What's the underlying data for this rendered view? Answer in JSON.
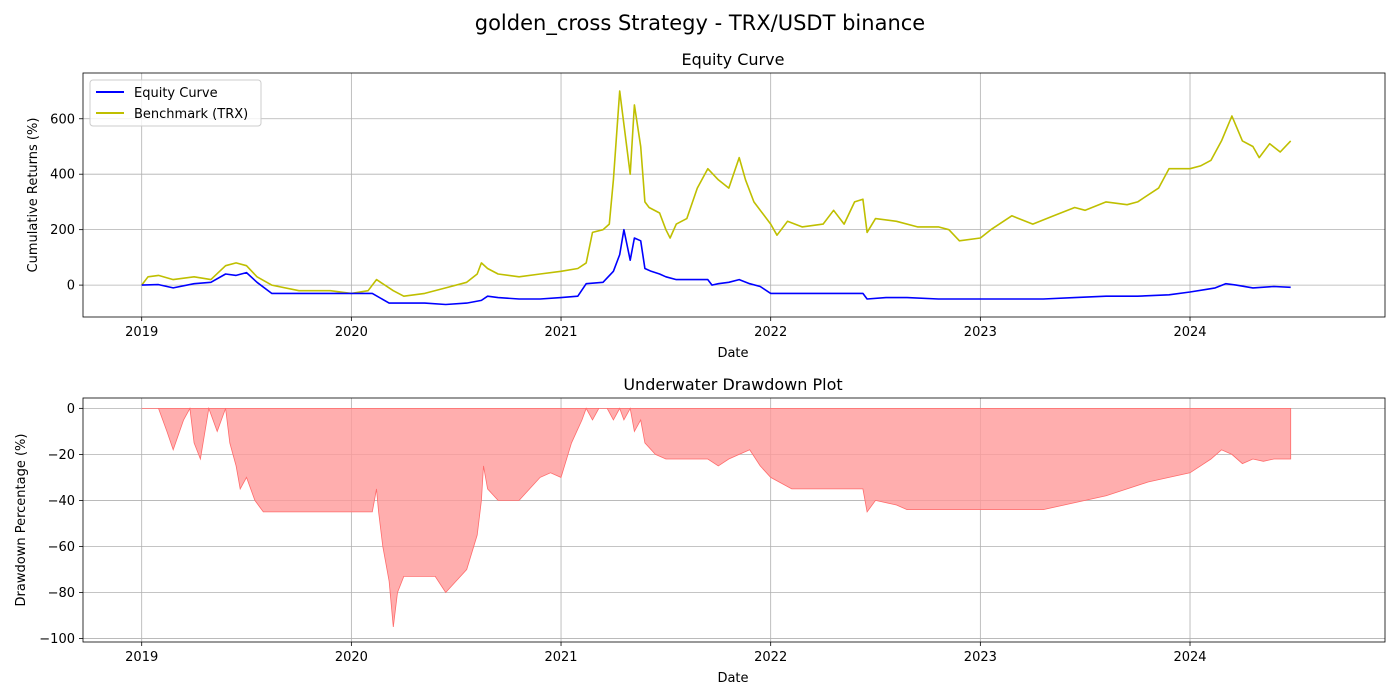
{
  "figure": {
    "title": "golden_cross Strategy - TRX/USDT binance"
  },
  "colors": {
    "equity": "#0000ff",
    "benchmark": "#bfbf00",
    "drawdown_fill": "#ff9a9a",
    "drawdown_line": "#ff6b6b",
    "grid": "#b0b0b0"
  },
  "chart_data": [
    {
      "type": "line",
      "title": "Equity Curve",
      "xlabel": "Date",
      "ylabel": "Cumulative Returns (%)",
      "x_ticks": [
        "2019",
        "2020",
        "2021",
        "2022",
        "2023",
        "2024"
      ],
      "y_ticks": [
        0,
        200,
        400,
        600
      ],
      "xlim": [
        2018.72,
        2024.93
      ],
      "ylim": [
        -115,
        765
      ],
      "grid": true,
      "legend_position": "upper left",
      "series": [
        {
          "name": "Equity Curve",
          "x": [
            2019.0,
            2019.08,
            2019.15,
            2019.25,
            2019.33,
            2019.4,
            2019.45,
            2019.5,
            2019.55,
            2019.62,
            2019.75,
            2019.9,
            2020.0,
            2020.1,
            2020.18,
            2020.25,
            2020.35,
            2020.45,
            2020.55,
            2020.62,
            2020.65,
            2020.7,
            2020.8,
            2020.9,
            2021.0,
            2021.08,
            2021.12,
            2021.2,
            2021.25,
            2021.28,
            2021.3,
            2021.33,
            2021.35,
            2021.38,
            2021.4,
            2021.43,
            2021.47,
            2021.5,
            2021.55,
            2021.62,
            2021.7,
            2021.72,
            2021.75,
            2021.8,
            2021.85,
            2021.9,
            2021.95,
            2022.0,
            2022.1,
            2022.3,
            2022.44,
            2022.46,
            2022.55,
            2022.65,
            2022.8,
            2023.0,
            2023.15,
            2023.3,
            2023.45,
            2023.6,
            2023.75,
            2023.9,
            2024.0,
            2024.08,
            2024.12,
            2024.17,
            2024.22,
            2024.3,
            2024.4,
            2024.48
          ],
          "y": [
            0,
            2,
            -10,
            5,
            10,
            40,
            35,
            45,
            10,
            -30,
            -30,
            -30,
            -30,
            -30,
            -65,
            -65,
            -65,
            -70,
            -65,
            -55,
            -40,
            -45,
            -50,
            -50,
            -45,
            -40,
            5,
            10,
            50,
            110,
            200,
            90,
            170,
            160,
            60,
            50,
            40,
            30,
            20,
            20,
            20,
            0,
            5,
            10,
            20,
            5,
            -5,
            -30,
            -30,
            -30,
            -30,
            -50,
            -45,
            -45,
            -50,
            -50,
            -50,
            -50,
            -45,
            -40,
            -40,
            -35,
            -25,
            -15,
            -10,
            5,
            0,
            -10,
            -5,
            -8
          ]
        },
        {
          "name": "Benchmark (TRX)",
          "x": [
            2019.0,
            2019.03,
            2019.08,
            2019.15,
            2019.25,
            2019.33,
            2019.4,
            2019.45,
            2019.5,
            2019.55,
            2019.62,
            2019.75,
            2019.9,
            2020.0,
            2020.08,
            2020.12,
            2020.2,
            2020.25,
            2020.35,
            2020.45,
            2020.55,
            2020.6,
            2020.62,
            2020.65,
            2020.7,
            2020.8,
            2020.9,
            2021.0,
            2021.08,
            2021.12,
            2021.15,
            2021.2,
            2021.23,
            2021.25,
            2021.28,
            2021.3,
            2021.33,
            2021.35,
            2021.38,
            2021.4,
            2021.42,
            2021.47,
            2021.5,
            2021.52,
            2021.55,
            2021.6,
            2021.65,
            2021.7,
            2021.75,
            2021.8,
            2021.85,
            2021.88,
            2021.92,
            2022.0,
            2022.03,
            2022.08,
            2022.15,
            2022.25,
            2022.3,
            2022.35,
            2022.4,
            2022.44,
            2022.46,
            2022.5,
            2022.6,
            2022.7,
            2022.8,
            2022.85,
            2022.9,
            2023.0,
            2023.05,
            2023.15,
            2023.25,
            2023.35,
            2023.45,
            2023.5,
            2023.6,
            2023.7,
            2023.75,
            2023.85,
            2023.9,
            2024.0,
            2024.05,
            2024.1,
            2024.15,
            2024.2,
            2024.25,
            2024.3,
            2024.33,
            2024.38,
            2024.43,
            2024.48
          ],
          "y": [
            0,
            30,
            35,
            20,
            30,
            20,
            70,
            80,
            70,
            30,
            0,
            -20,
            -20,
            -30,
            -20,
            20,
            -20,
            -40,
            -30,
            -10,
            10,
            40,
            80,
            60,
            40,
            30,
            40,
            50,
            60,
            80,
            190,
            200,
            220,
            380,
            700,
            580,
            400,
            650,
            500,
            300,
            280,
            260,
            200,
            170,
            220,
            240,
            350,
            420,
            380,
            350,
            460,
            380,
            300,
            220,
            180,
            230,
            210,
            220,
            270,
            220,
            300,
            310,
            190,
            240,
            230,
            210,
            210,
            200,
            160,
            170,
            200,
            250,
            220,
            250,
            280,
            270,
            300,
            290,
            300,
            350,
            420,
            420,
            430,
            450,
            520,
            610,
            520,
            500,
            460,
            510,
            480,
            520
          ]
        }
      ]
    },
    {
      "type": "area",
      "title": "Underwater Drawdown Plot",
      "xlabel": "Date",
      "ylabel": "Drawdown Percentage (%)",
      "x_ticks": [
        "2019",
        "2020",
        "2021",
        "2022",
        "2023",
        "2024"
      ],
      "y_ticks": [
        0,
        -20,
        -40,
        -60,
        -80,
        -100
      ],
      "xlim": [
        2018.72,
        2024.93
      ],
      "ylim": [
        -101.5,
        4.5
      ],
      "grid": true,
      "series": [
        {
          "name": "",
          "x": [
            2019.0,
            2019.05,
            2019.08,
            2019.12,
            2019.15,
            2019.2,
            2019.23,
            2019.25,
            2019.28,
            2019.32,
            2019.36,
            2019.38,
            2019.4,
            2019.42,
            2019.45,
            2019.47,
            2019.5,
            2019.54,
            2019.58,
            2019.62,
            2019.7,
            2019.8,
            2019.9,
            2020.0,
            2020.05,
            2020.1,
            2020.12,
            2020.13,
            2020.15,
            2020.18,
            2020.2,
            2020.22,
            2020.25,
            2020.3,
            2020.4,
            2020.45,
            2020.5,
            2020.55,
            2020.6,
            2020.62,
            2020.63,
            2020.65,
            2020.7,
            2020.75,
            2020.8,
            2020.85,
            2020.9,
            2020.95,
            2021.0,
            2021.05,
            2021.1,
            2021.12,
            2021.15,
            2021.18,
            2021.22,
            2021.25,
            2021.28,
            2021.3,
            2021.33,
            2021.35,
            2021.38,
            2021.4,
            2021.45,
            2021.5,
            2021.55,
            2021.6,
            2021.7,
            2021.75,
            2021.8,
            2021.85,
            2021.9,
            2021.95,
            2022.0,
            2022.1,
            2022.2,
            2022.3,
            2022.4,
            2022.44,
            2022.46,
            2022.5,
            2022.6,
            2022.65,
            2022.7,
            2022.8,
            2022.9,
            2023.0,
            2023.1,
            2023.2,
            2023.3,
            2023.4,
            2023.5,
            2023.6,
            2023.7,
            2023.8,
            2023.9,
            2024.0,
            2024.05,
            2024.1,
            2024.15,
            2024.2,
            2024.25,
            2024.3,
            2024.35,
            2024.4,
            2024.45,
            2024.48
          ],
          "y": [
            0,
            0,
            0,
            -10,
            -18,
            -5,
            0,
            -15,
            -22,
            0,
            -10,
            -5,
            0,
            -15,
            -25,
            -35,
            -30,
            -40,
            -45,
            -45,
            -45,
            -45,
            -45,
            -45,
            -45,
            -45,
            -35,
            -45,
            -60,
            -75,
            -95,
            -80,
            -73,
            -73,
            -73,
            -80,
            -75,
            -70,
            -55,
            -40,
            -25,
            -35,
            -40,
            -40,
            -40,
            -35,
            -30,
            -28,
            -30,
            -15,
            -5,
            0,
            -5,
            0,
            0,
            -5,
            0,
            -5,
            0,
            -10,
            -5,
            -15,
            -20,
            -22,
            -22,
            -22,
            -22,
            -25,
            -22,
            -20,
            -18,
            -25,
            -30,
            -35,
            -35,
            -35,
            -35,
            -35,
            -45,
            -40,
            -42,
            -44,
            -44,
            -44,
            -44,
            -44,
            -44,
            -44,
            -44,
            -42,
            -40,
            -38,
            -35,
            -32,
            -30,
            -28,
            -25,
            -22,
            -18,
            -20,
            -24,
            -22,
            -23,
            -22,
            -22,
            -22
          ]
        }
      ]
    }
  ]
}
